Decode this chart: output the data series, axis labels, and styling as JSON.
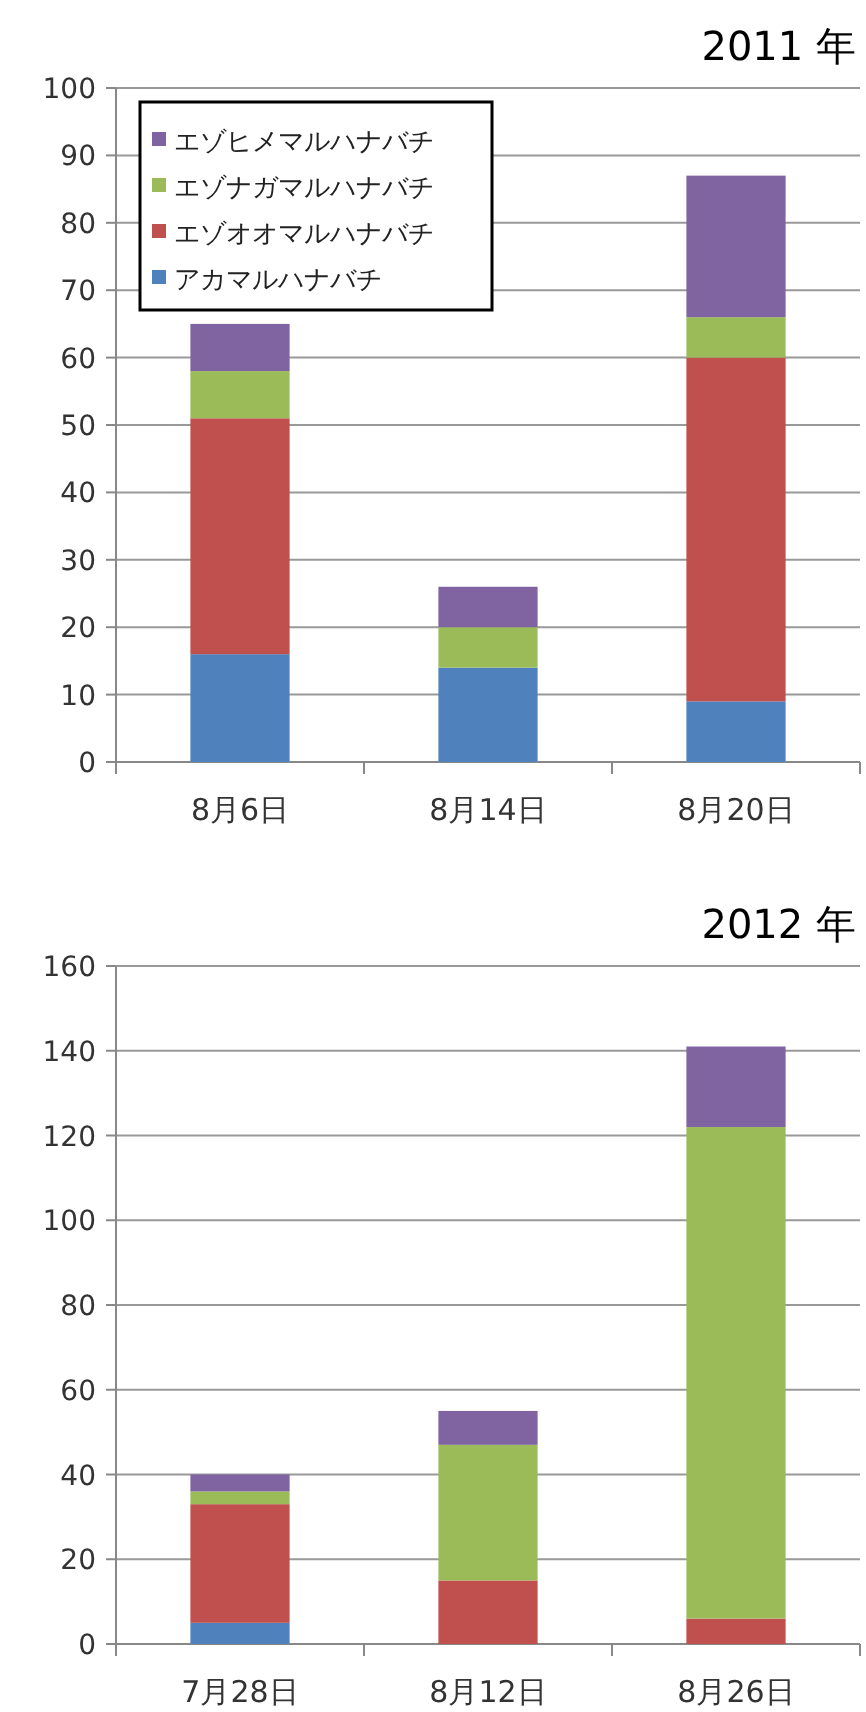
{
  "chart_data": [
    {
      "type": "bar",
      "title": "2011 年",
      "stacked": true,
      "categories": [
        "8月6日",
        "8月14日",
        "8月20日"
      ],
      "ylim": [
        0,
        100
      ],
      "yticks": [
        0,
        10,
        20,
        30,
        40,
        50,
        60,
        70,
        80,
        90,
        100
      ],
      "grid": "y",
      "legend": "top left",
      "series": [
        {
          "name": "アカマルハナバチ",
          "color": "#4f81bd",
          "values": [
            16,
            14,
            9
          ]
        },
        {
          "name": "エゾオオマルハナバチ",
          "color": "#c0504d",
          "values": [
            35,
            0,
            51
          ]
        },
        {
          "name": "エゾナガマルハナバチ",
          "color": "#9bbb59",
          "values": [
            7,
            6,
            6
          ]
        },
        {
          "name": "エゾヒメマルハナバチ",
          "color": "#8064a2",
          "values": [
            7,
            6,
            21
          ]
        }
      ]
    },
    {
      "type": "bar",
      "title": "2012 年",
      "stacked": true,
      "categories": [
        "7月28日",
        "8月12日",
        "8月26日"
      ],
      "ylim": [
        0,
        160
      ],
      "yticks": [
        0,
        20,
        40,
        60,
        80,
        100,
        120,
        140,
        160
      ],
      "grid": "y",
      "series": [
        {
          "color": "#4f81bd",
          "values": [
            5,
            0,
            0
          ]
        },
        {
          "color": "#c0504d",
          "values": [
            28,
            15,
            6
          ]
        },
        {
          "color": "#9bbb59",
          "values": [
            3,
            32,
            116
          ]
        },
        {
          "color": "#8064a2",
          "values": [
            4,
            8,
            19
          ]
        }
      ]
    }
  ]
}
